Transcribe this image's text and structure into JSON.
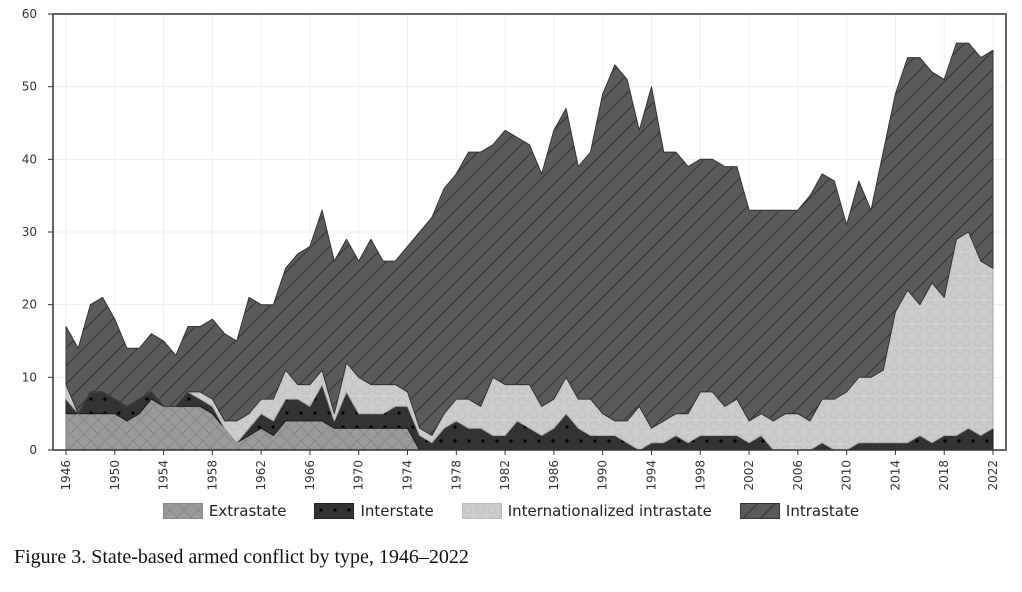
{
  "caption": "Figure 3. State-based armed conflict by type, 1946–2022",
  "chart_data": {
    "type": "area",
    "stacked": true,
    "title": "",
    "xlabel": "",
    "ylabel": "",
    "ylim": [
      0,
      60
    ],
    "yticks": [
      0,
      10,
      20,
      30,
      40,
      50,
      60
    ],
    "xticks": [
      1946,
      1950,
      1954,
      1958,
      1962,
      1966,
      1970,
      1974,
      1978,
      1982,
      1986,
      1990,
      1994,
      1998,
      2002,
      2006,
      2010,
      2014,
      2018,
      2022
    ],
    "grid": true,
    "legend_position": "bottom",
    "x": [
      1946,
      1947,
      1948,
      1949,
      1950,
      1951,
      1952,
      1953,
      1954,
      1955,
      1956,
      1957,
      1958,
      1959,
      1960,
      1961,
      1962,
      1963,
      1964,
      1965,
      1966,
      1967,
      1968,
      1969,
      1970,
      1971,
      1972,
      1973,
      1974,
      1975,
      1976,
      1977,
      1978,
      1979,
      1980,
      1981,
      1982,
      1983,
      1984,
      1985,
      1986,
      1987,
      1988,
      1989,
      1990,
      1991,
      1992,
      1993,
      1994,
      1995,
      1996,
      1997,
      1998,
      1999,
      2000,
      2001,
      2002,
      2003,
      2004,
      2005,
      2006,
      2007,
      2008,
      2009,
      2010,
      2011,
      2012,
      2013,
      2014,
      2015,
      2016,
      2017,
      2018,
      2019,
      2020,
      2021,
      2022
    ],
    "series": [
      {
        "name": "Extrastate",
        "values": [
          5,
          5,
          5,
          5,
          5,
          4,
          5,
          7,
          6,
          6,
          6,
          6,
          5,
          3,
          1,
          2,
          3,
          2,
          4,
          4,
          4,
          4,
          3,
          3,
          3,
          3,
          3,
          3,
          3,
          0,
          0,
          0,
          0,
          0,
          0,
          0,
          0,
          0,
          0,
          0,
          0,
          0,
          0,
          0,
          0,
          0,
          0,
          0,
          0,
          0,
          0,
          0,
          0,
          0,
          0,
          0,
          0,
          0,
          0,
          0,
          0,
          0,
          0,
          0,
          0,
          0,
          0,
          0,
          0,
          0,
          0,
          0,
          0,
          0,
          0,
          0,
          0
        ]
      },
      {
        "name": "Interstate",
        "values": [
          2,
          0,
          3,
          3,
          2,
          2,
          2,
          1,
          0,
          0,
          2,
          1,
          1,
          0,
          0,
          1,
          2,
          2,
          3,
          3,
          2,
          5,
          1,
          5,
          2,
          2,
          2,
          3,
          3,
          2,
          1,
          3,
          4,
          3,
          3,
          2,
          2,
          4,
          3,
          2,
          3,
          5,
          3,
          2,
          2,
          2,
          1,
          0,
          1,
          1,
          2,
          1,
          2,
          2,
          2,
          2,
          1,
          2,
          0,
          0,
          0,
          0,
          1,
          0,
          0,
          1,
          1,
          1,
          1,
          1,
          2,
          1,
          2,
          2,
          3,
          2,
          3
        ]
      },
      {
        "name": "Internationalized intrastate",
        "values": [
          2,
          0,
          0,
          0,
          0,
          0,
          0,
          0,
          0,
          0,
          0,
          1,
          1,
          1,
          3,
          2,
          2,
          3,
          4,
          2,
          3,
          2,
          1,
          4,
          5,
          4,
          4,
          3,
          2,
          1,
          1,
          2,
          3,
          4,
          3,
          8,
          7,
          5,
          6,
          4,
          4,
          5,
          4,
          5,
          3,
          2,
          3,
          6,
          2,
          3,
          3,
          4,
          6,
          6,
          4,
          5,
          3,
          3,
          4,
          5,
          5,
          4,
          6,
          7,
          8,
          9,
          9,
          10,
          18,
          21,
          18,
          22,
          19,
          27,
          27,
          24,
          22
        ]
      },
      {
        "name": "Intrastate",
        "values": [
          8,
          9,
          12,
          13,
          11,
          8,
          7,
          8,
          9,
          7,
          9,
          9,
          11,
          12,
          11,
          16,
          13,
          13,
          14,
          18,
          19,
          22,
          21,
          17,
          16,
          20,
          17,
          17,
          20,
          27,
          30,
          31,
          31,
          34,
          35,
          32,
          35,
          34,
          33,
          32,
          37,
          37,
          32,
          34,
          44,
          49,
          47,
          38,
          47,
          37,
          36,
          34,
          32,
          32,
          33,
          32,
          29,
          28,
          29,
          28,
          28,
          31,
          31,
          30,
          23,
          27,
          23,
          30,
          30,
          32,
          34,
          29,
          30,
          27,
          26,
          28,
          30
        ]
      }
    ],
    "totals": [
      17,
      14,
      20,
      21,
      18,
      14,
      14,
      16,
      15,
      13,
      17,
      17,
      18,
      16,
      15,
      21,
      20,
      20,
      25,
      27,
      28,
      33,
      26,
      29,
      26,
      29,
      26,
      26,
      28,
      30,
      32,
      36,
      38,
      41,
      41,
      42,
      44,
      43,
      42,
      38,
      44,
      47,
      39,
      41,
      49,
      53,
      51,
      44,
      50,
      41,
      41,
      39,
      40,
      40,
      39,
      39,
      33,
      33,
      33,
      33,
      33,
      35,
      38,
      37,
      31,
      37,
      33,
      41,
      49,
      54,
      54,
      52,
      51,
      56,
      56,
      54,
      55
    ]
  },
  "legend": [
    {
      "label": "Extrastate",
      "pattern": "crosshatch",
      "color": "#9a9a9a"
    },
    {
      "label": "Interstate",
      "pattern": "dots",
      "color": "#333333"
    },
    {
      "label": "Internationalized intrastate",
      "pattern": "circles",
      "color": "#cccccc"
    },
    {
      "label": "Intrastate",
      "pattern": "diagonal",
      "color": "#5a5a5a"
    }
  ]
}
